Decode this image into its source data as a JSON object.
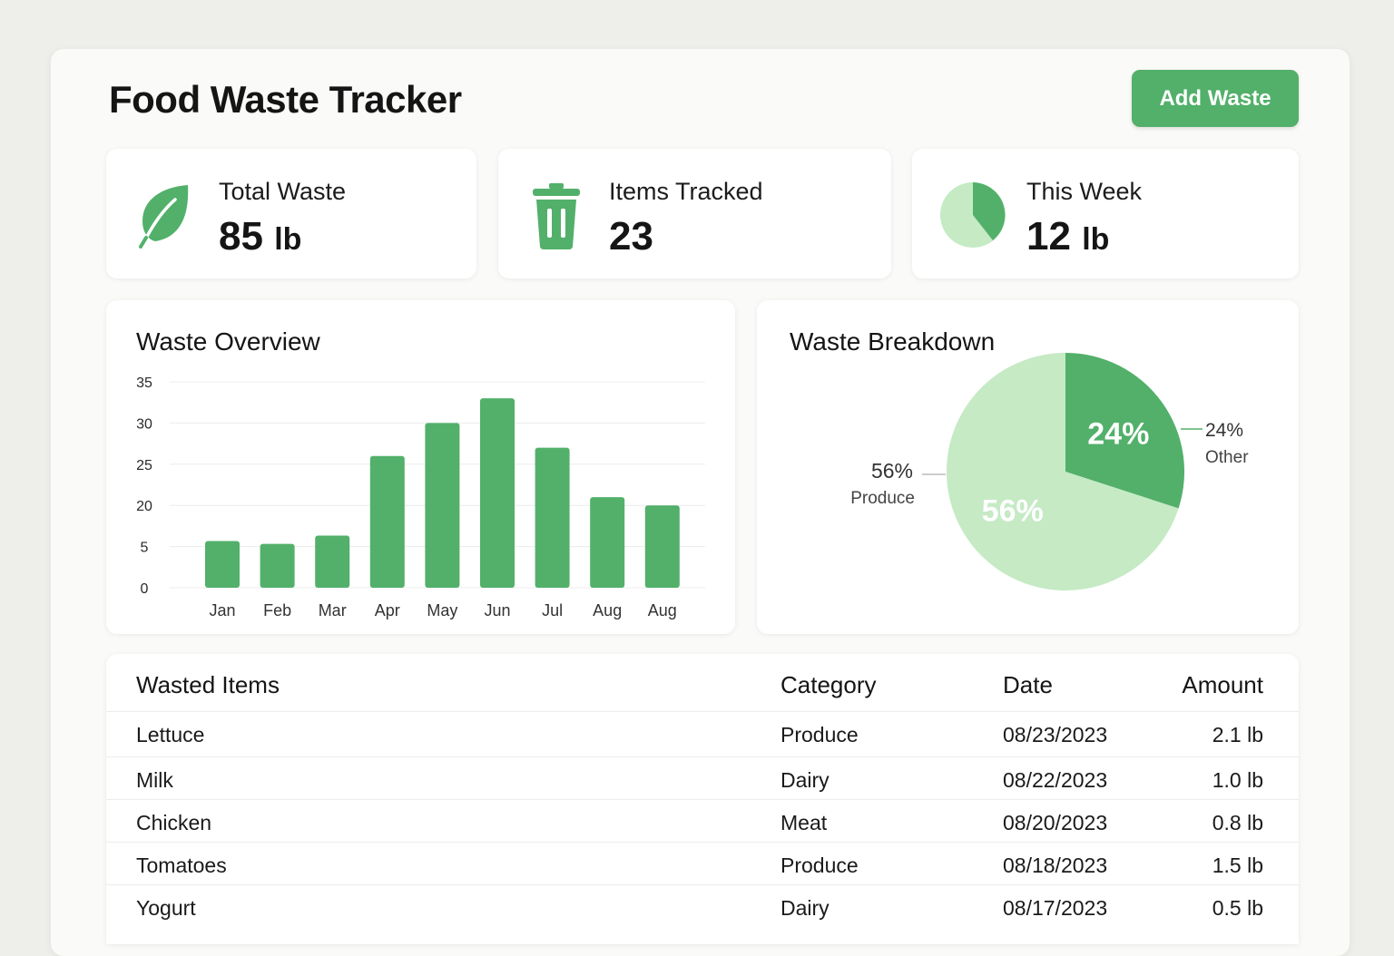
{
  "app": {
    "title": "Food Waste Tracker",
    "add_button": "Add Waste",
    "accent": "#52b06a",
    "accent_light": "#c5eac4"
  },
  "stats": [
    {
      "label": "Total Waste",
      "value": "85",
      "unit": "lb",
      "icon": "leaf-icon"
    },
    {
      "label": "Items Tracked",
      "value": "23",
      "unit": "",
      "icon": "trash-can-icon"
    },
    {
      "label": "This Week",
      "value": "12",
      "unit": "lb",
      "icon": "pie-chart-icon"
    }
  ],
  "overview": {
    "title": "Waste Overview",
    "chart_data": {
      "type": "bar",
      "categories": [
        "Jan",
        "Feb",
        "Mar",
        "Apr",
        "May",
        "Jun",
        "Jul",
        "Aug",
        "Aug"
      ],
      "values": [
        7,
        6,
        9,
        26,
        30,
        33,
        27,
        21,
        20
      ],
      "yticks": [
        "0",
        "5",
        "20",
        "25",
        "30",
        "35"
      ],
      "grid": true
    }
  },
  "breakdown": {
    "title": "Waste Breakdown",
    "chart_data": {
      "type": "pie",
      "slices": [
        {
          "label": "Other",
          "value": 24,
          "text": "24%",
          "color": "#52b06a"
        },
        {
          "label": "Produce",
          "value": 56,
          "text": "56%",
          "color": "#c5eac4"
        }
      ]
    }
  },
  "table": {
    "headers": [
      "Wasted Items",
      "Category",
      "Date",
      "Amount"
    ],
    "rows": [
      {
        "item": "Lettuce",
        "category": "Produce",
        "date": "08/23/2023",
        "amount": "2.1 lb"
      },
      {
        "item": "Milk",
        "category": "Dairy",
        "date": "08/22/2023",
        "amount": "1.0 lb"
      },
      {
        "item": "Chicken",
        "category": "Meat",
        "date": "08/20/2023",
        "amount": "0.8 lb"
      },
      {
        "item": "Tomatoes",
        "category": "Produce",
        "date": "08/18/2023",
        "amount": "1.5 lb"
      },
      {
        "item": "Yogurt",
        "category": "Dairy",
        "date": "08/17/2023",
        "amount": "0.5 lb"
      }
    ]
  }
}
